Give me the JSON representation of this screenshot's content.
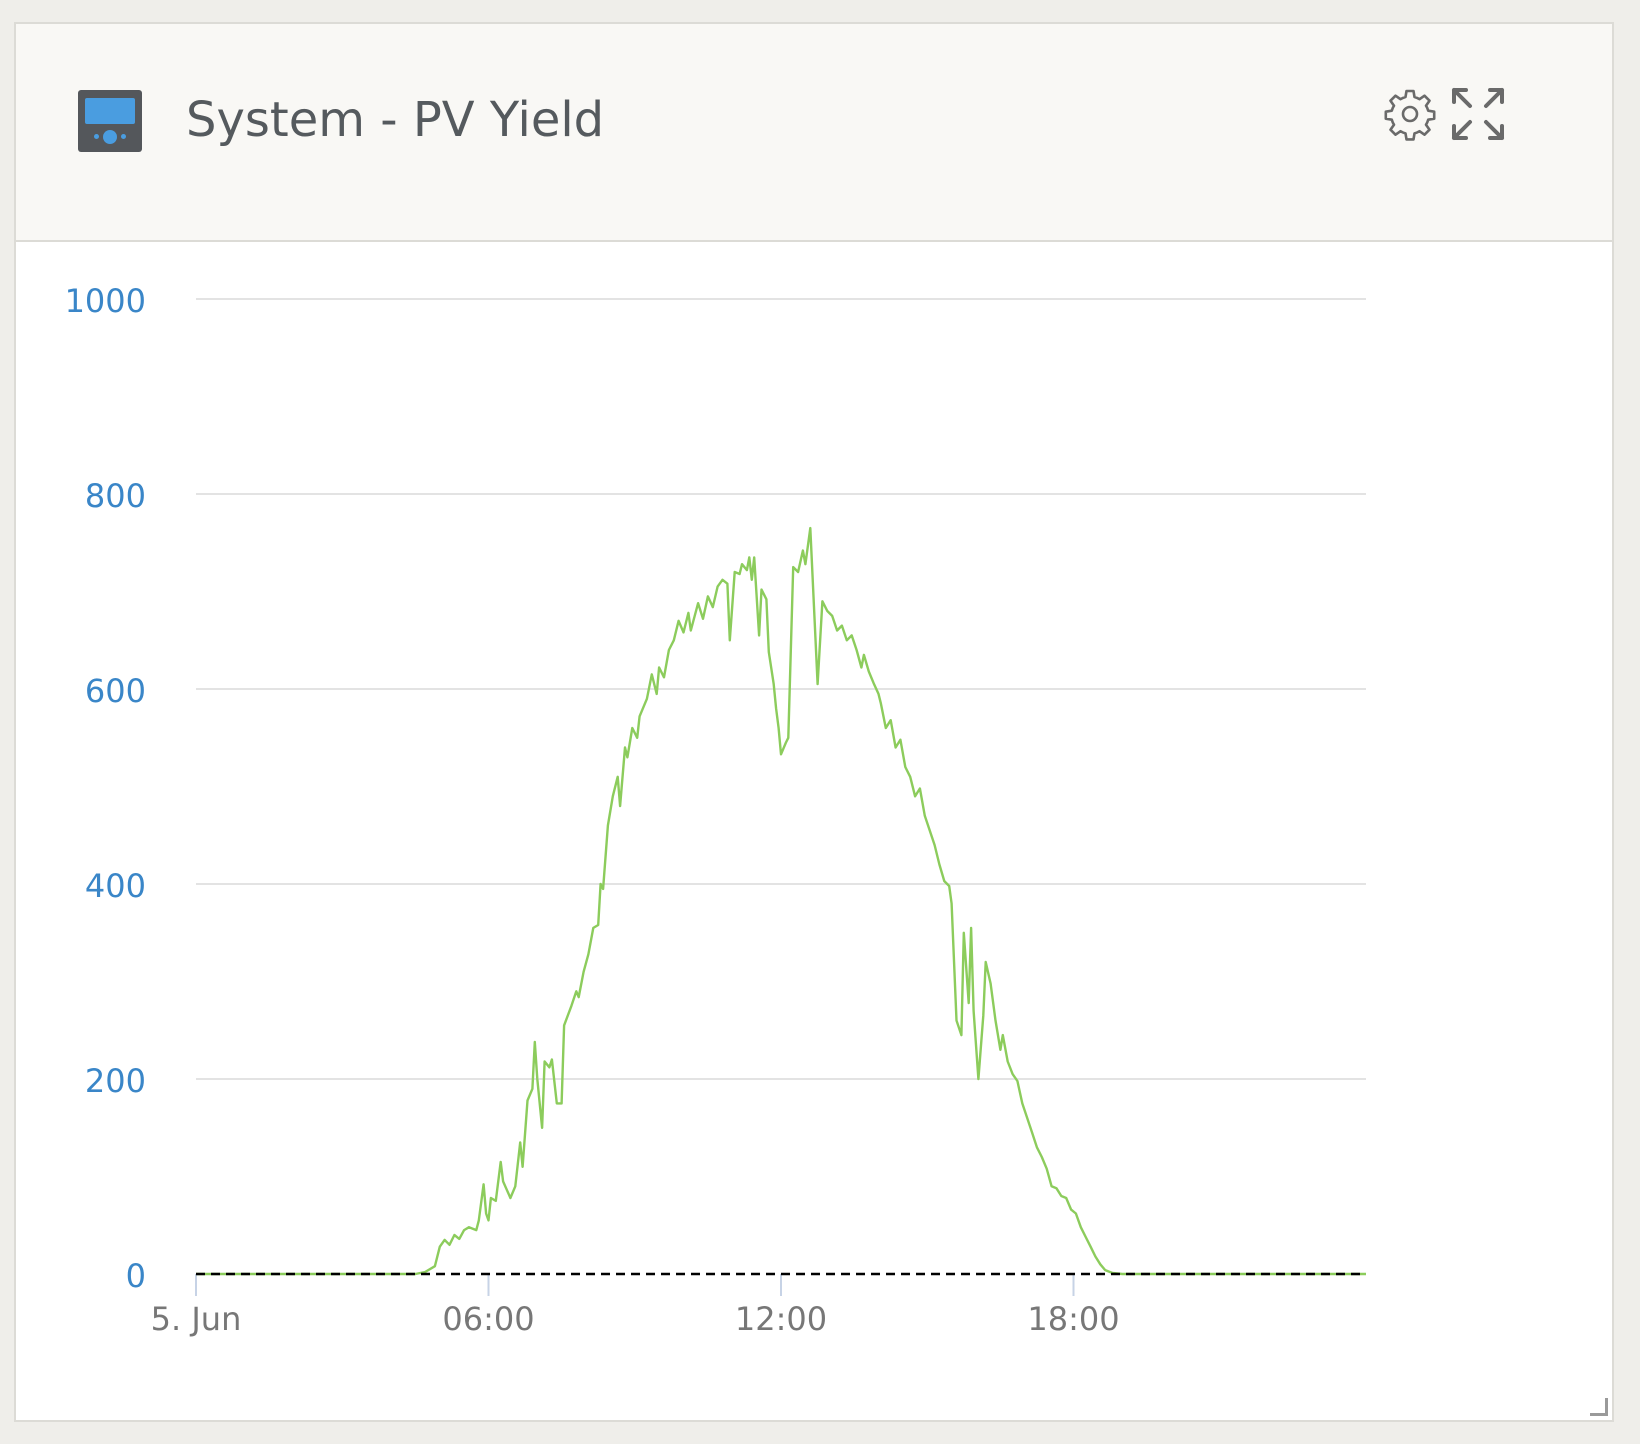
{
  "widget": {
    "title": "System - PV Yield",
    "device_icon": "gx-device-icon",
    "settings_icon": "gear-icon",
    "expand_icon": "expand-arrows-icon",
    "resize_icon": "resize-corner-icon"
  },
  "chart_data": {
    "type": "line",
    "title": "",
    "xlabel": "",
    "ylabel": "",
    "x_ticks": [
      "5. Jun",
      "06:00",
      "12:00",
      "18:00"
    ],
    "x_tick_values": [
      0,
      6,
      12,
      18
    ],
    "xlim": [
      0,
      24
    ],
    "y_ticks": [
      "0",
      "200",
      "400",
      "600",
      "800",
      "1000"
    ],
    "y_tick_values": [
      0,
      200,
      400,
      600,
      800,
      1000
    ],
    "ylim": [
      0,
      1000
    ],
    "grid": true,
    "legend": "none",
    "colors": {
      "series": "#8ccc5c",
      "axis_labels": "#3a86c8",
      "x_labels": "#777777",
      "gridline": "#e3e3e3",
      "baseline": "#000000"
    },
    "series": [
      {
        "values": [
          [
            0.0,
            0
          ],
          [
            4.5,
            0
          ],
          [
            4.7,
            2
          ],
          [
            4.9,
            8
          ],
          [
            5.0,
            28
          ],
          [
            5.1,
            35
          ],
          [
            5.2,
            30
          ],
          [
            5.3,
            40
          ],
          [
            5.4,
            36
          ],
          [
            5.5,
            45
          ],
          [
            5.6,
            48
          ],
          [
            5.75,
            45
          ],
          [
            5.8,
            55
          ],
          [
            5.9,
            92
          ],
          [
            5.95,
            62
          ],
          [
            6.0,
            55
          ],
          [
            6.05,
            78
          ],
          [
            6.15,
            75
          ],
          [
            6.25,
            115
          ],
          [
            6.3,
            95
          ],
          [
            6.45,
            78
          ],
          [
            6.55,
            90
          ],
          [
            6.65,
            135
          ],
          [
            6.7,
            110
          ],
          [
            6.8,
            178
          ],
          [
            6.9,
            190
          ],
          [
            6.95,
            238
          ],
          [
            7.0,
            200
          ],
          [
            7.1,
            150
          ],
          [
            7.15,
            218
          ],
          [
            7.25,
            212
          ],
          [
            7.3,
            220
          ],
          [
            7.4,
            175
          ],
          [
            7.5,
            175
          ],
          [
            7.55,
            255
          ],
          [
            7.7,
            275
          ],
          [
            7.8,
            290
          ],
          [
            7.85,
            284
          ],
          [
            7.95,
            310
          ],
          [
            8.05,
            328
          ],
          [
            8.15,
            355
          ],
          [
            8.25,
            358
          ],
          [
            8.3,
            400
          ],
          [
            8.35,
            395
          ],
          [
            8.45,
            460
          ],
          [
            8.55,
            490
          ],
          [
            8.65,
            510
          ],
          [
            8.7,
            480
          ],
          [
            8.8,
            540
          ],
          [
            8.85,
            530
          ],
          [
            8.95,
            560
          ],
          [
            9.05,
            550
          ],
          [
            9.1,
            572
          ],
          [
            9.25,
            590
          ],
          [
            9.35,
            615
          ],
          [
            9.45,
            595
          ],
          [
            9.5,
            622
          ],
          [
            9.6,
            612
          ],
          [
            9.7,
            640
          ],
          [
            9.8,
            650
          ],
          [
            9.9,
            670
          ],
          [
            10.0,
            658
          ],
          [
            10.1,
            678
          ],
          [
            10.15,
            660
          ],
          [
            10.3,
            688
          ],
          [
            10.4,
            672
          ],
          [
            10.5,
            695
          ],
          [
            10.6,
            684
          ],
          [
            10.7,
            705
          ],
          [
            10.8,
            712
          ],
          [
            10.9,
            708
          ],
          [
            10.95,
            650
          ],
          [
            11.05,
            720
          ],
          [
            11.15,
            718
          ],
          [
            11.2,
            728
          ],
          [
            11.3,
            722
          ],
          [
            11.35,
            735
          ],
          [
            11.4,
            712
          ],
          [
            11.45,
            735
          ],
          [
            11.55,
            655
          ],
          [
            11.6,
            702
          ],
          [
            11.7,
            692
          ],
          [
            11.75,
            638
          ],
          [
            11.85,
            605
          ],
          [
            11.9,
            580
          ],
          [
            11.95,
            560
          ],
          [
            12.0,
            533
          ],
          [
            12.1,
            545
          ],
          [
            12.15,
            550
          ],
          [
            12.25,
            725
          ],
          [
            12.35,
            720
          ],
          [
            12.45,
            742
          ],
          [
            12.5,
            728
          ],
          [
            12.6,
            765
          ],
          [
            12.75,
            605
          ],
          [
            12.85,
            690
          ],
          [
            12.95,
            680
          ],
          [
            13.05,
            675
          ],
          [
            13.15,
            660
          ],
          [
            13.25,
            665
          ],
          [
            13.35,
            650
          ],
          [
            13.45,
            655
          ],
          [
            13.55,
            640
          ],
          [
            13.65,
            622
          ],
          [
            13.7,
            635
          ],
          [
            13.8,
            618
          ],
          [
            13.9,
            606
          ],
          [
            14.0,
            595
          ],
          [
            14.05,
            585
          ],
          [
            14.15,
            560
          ],
          [
            14.25,
            568
          ],
          [
            14.35,
            540
          ],
          [
            14.45,
            548
          ],
          [
            14.55,
            520
          ],
          [
            14.65,
            510
          ],
          [
            14.75,
            490
          ],
          [
            14.85,
            498
          ],
          [
            14.95,
            470
          ],
          [
            15.05,
            455
          ],
          [
            15.15,
            440
          ],
          [
            15.25,
            420
          ],
          [
            15.35,
            403
          ],
          [
            15.45,
            398
          ],
          [
            15.5,
            380
          ],
          [
            15.6,
            260
          ],
          [
            15.7,
            245
          ],
          [
            15.75,
            350
          ],
          [
            15.85,
            278
          ],
          [
            15.9,
            355
          ],
          [
            15.95,
            270
          ],
          [
            16.05,
            200
          ],
          [
            16.15,
            265
          ],
          [
            16.2,
            320
          ],
          [
            16.3,
            298
          ],
          [
            16.4,
            260
          ],
          [
            16.5,
            230
          ],
          [
            16.55,
            245
          ],
          [
            16.65,
            218
          ],
          [
            16.75,
            205
          ],
          [
            16.85,
            198
          ],
          [
            16.95,
            175
          ],
          [
            17.05,
            160
          ],
          [
            17.15,
            145
          ],
          [
            17.25,
            130
          ],
          [
            17.35,
            120
          ],
          [
            17.45,
            108
          ],
          [
            17.55,
            90
          ],
          [
            17.65,
            88
          ],
          [
            17.75,
            80
          ],
          [
            17.85,
            78
          ],
          [
            17.95,
            66
          ],
          [
            18.05,
            62
          ],
          [
            18.15,
            48
          ],
          [
            18.25,
            38
          ],
          [
            18.35,
            28
          ],
          [
            18.45,
            18
          ],
          [
            18.55,
            10
          ],
          [
            18.65,
            4
          ],
          [
            18.8,
            1
          ],
          [
            19.0,
            0
          ],
          [
            24.0,
            0
          ]
        ]
      }
    ]
  }
}
